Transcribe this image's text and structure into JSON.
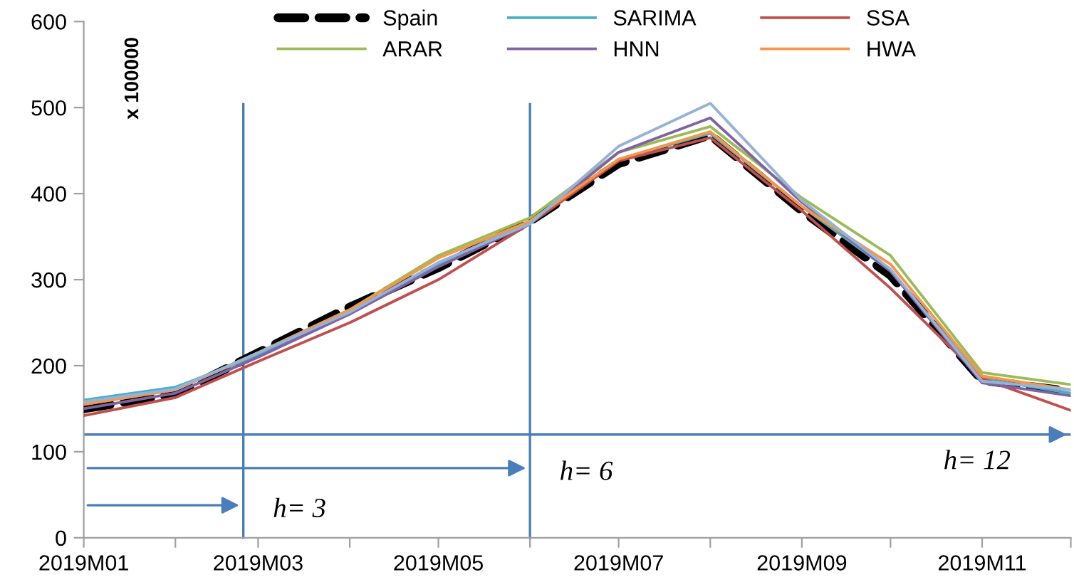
{
  "chart_data": {
    "type": "line",
    "ylabel": "x 100000",
    "x": [
      "2019-01",
      "2019-02",
      "2019-03",
      "2019-04",
      "2019-05",
      "2019-06",
      "2019-07",
      "2019-08",
      "2019-09",
      "2019-10",
      "2019-11",
      "2019-12"
    ],
    "series": [
      {
        "name": "Spain",
        "color": "#000000",
        "line_style": "dashed",
        "values": [
          150,
          167,
          215,
          268,
          314,
          368,
          435,
          468,
          380,
          305,
          183,
          170
        ]
      },
      {
        "name": "SARIMA",
        "color": "#4bacc6",
        "values": [
          160,
          175,
          212,
          262,
          318,
          368,
          440,
          470,
          385,
          310,
          185,
          168
        ]
      },
      {
        "name": "SSA",
        "color": "#c0504d",
        "values": [
          142,
          163,
          205,
          250,
          300,
          365,
          438,
          465,
          380,
          290,
          185,
          148
        ]
      },
      {
        "name": "ARAR",
        "color": "#9bbb59",
        "values": [
          155,
          172,
          215,
          265,
          328,
          372,
          448,
          478,
          395,
          328,
          192,
          178
        ]
      },
      {
        "name": "HNN",
        "color": "#8064a2",
        "values": [
          150,
          168,
          210,
          260,
          315,
          365,
          448,
          488,
          390,
          310,
          180,
          165
        ]
      },
      {
        "name": "HWA",
        "color": "#f79646",
        "values": [
          155,
          172,
          215,
          265,
          325,
          368,
          440,
          472,
          385,
          318,
          188,
          172
        ]
      },
      {
        "color": "#95b3d7",
        "values": [
          158,
          173,
          215,
          262,
          320,
          365,
          455,
          505,
          392,
          312,
          182,
          172
        ]
      }
    ],
    "xlim": [
      "2019-01",
      "2019-12"
    ],
    "xticks": [
      {
        "value": "2019-01",
        "label": "2019M01"
      },
      {
        "value": "2019-02",
        "label": null
      },
      {
        "value": "2019-03",
        "label": "2019M03"
      },
      {
        "value": "2019-04",
        "label": null
      },
      {
        "value": "2019-05",
        "label": "2019M05"
      },
      {
        "value": "2019-06",
        "label": null
      },
      {
        "value": "2019-07",
        "label": "2019M07"
      },
      {
        "value": "2019-08",
        "label": null
      },
      {
        "value": "2019-09",
        "label": "2019M09"
      },
      {
        "value": "2019-10",
        "label": null
      },
      {
        "value": "2019-11",
        "label": "2019M11"
      },
      {
        "value": "2019-12",
        "label": null
      }
    ],
    "ylim": [
      0,
      600
    ],
    "yticks": [
      0,
      100,
      200,
      300,
      400,
      500,
      600
    ],
    "ref_lines": [
      {
        "axis": "x",
        "value": "2019-02-24",
        "label": "h= 3",
        "color": "#4a7ebb"
      },
      {
        "axis": "x",
        "value": "2019-06-01",
        "label": "h= 6",
        "color": "#4a7ebb"
      },
      {
        "axis": "y",
        "value": 120,
        "color": "#4a7ebb"
      }
    ],
    "annotations": [
      "h= 12"
    ],
    "grid": false,
    "legend": "top",
    "marker": "none",
    "line_style": "solid"
  }
}
